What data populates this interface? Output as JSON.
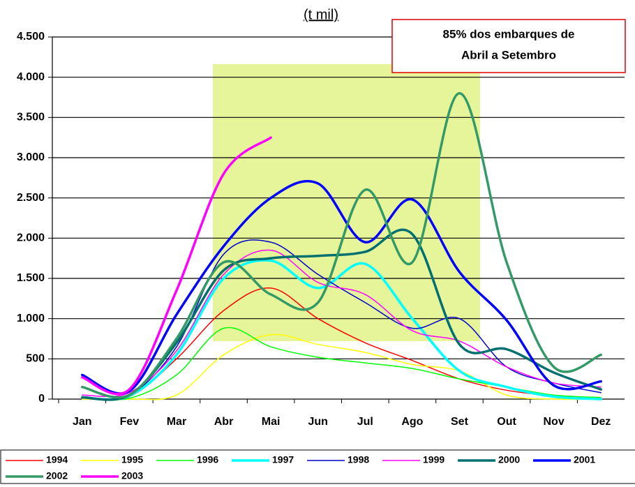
{
  "chart_data": {
    "type": "line",
    "title": "(t mil)",
    "annotation": [
      "85% dos embarques de",
      "Abril a Setembro"
    ],
    "categories": [
      "Jan",
      "Fev",
      "Mar",
      "Abr",
      "Mai",
      "Jun",
      "Jul",
      "Ago",
      "Set",
      "Out",
      "Nov",
      "Dez"
    ],
    "ylim": [
      0,
      4500
    ],
    "yticks": [
      0,
      500,
      {
        "value": 1000,
        "label": "1.000"
      },
      {
        "value": 1500,
        "label": "1.500"
      },
      {
        "value": 2000,
        "label": "2.000"
      },
      {
        "value": 2500,
        "label": "2.500"
      },
      {
        "value": 3000,
        "label": "3.000"
      },
      {
        "value": 3500,
        "label": "3.500"
      },
      {
        "value": 4000,
        "label": "4.000"
      },
      {
        "value": 4500,
        "label": "4.500"
      }
    ],
    "grid": true,
    "legend": "bottom",
    "series": [
      {
        "name": "1994",
        "color": "#ff0000",
        "line_width": 1.5,
        "values": [
          20,
          30,
          500,
          1100,
          1380,
          1000,
          700,
          480,
          250,
          110,
          40,
          10
        ]
      },
      {
        "name": "1995",
        "color": "#ffff00",
        "line_width": 1.5,
        "values": [
          0,
          0,
          50,
          550,
          800,
          680,
          580,
          430,
          350,
          50,
          0,
          0
        ]
      },
      {
        "name": "1996",
        "color": "#00ff00",
        "line_width": 1.5,
        "values": [
          20,
          10,
          300,
          880,
          650,
          520,
          450,
          380,
          250,
          150,
          50,
          20
        ]
      },
      {
        "name": "1997",
        "color": "#00ffff",
        "line_width": 3.5,
        "values": [
          20,
          40,
          550,
          1500,
          1720,
          1380,
          1680,
          1000,
          350,
          150,
          30,
          0
        ]
      },
      {
        "name": "1998",
        "color": "#0000cc",
        "line_width": 1.5,
        "values": [
          30,
          50,
          650,
          1800,
          1950,
          1550,
          1200,
          880,
          1000,
          400,
          200,
          80
        ]
      },
      {
        "name": "1999",
        "color": "#ff00ff",
        "line_width": 1.5,
        "values": [
          50,
          80,
          600,
          1550,
          1850,
          1450,
          1300,
          850,
          720,
          400,
          200,
          150
        ]
      },
      {
        "name": "2000",
        "color": "#006f6f",
        "line_width": 3.5,
        "values": [
          20,
          50,
          700,
          1600,
          1750,
          1780,
          1830,
          2050,
          680,
          620,
          330,
          120
        ]
      },
      {
        "name": "2001",
        "color": "#0000ff",
        "line_width": 3.5,
        "values": [
          300,
          100,
          1050,
          1900,
          2500,
          2680,
          1950,
          2480,
          1580,
          980,
          170,
          220
        ]
      },
      {
        "name": "2002",
        "color": "#339966",
        "line_width": 3.5,
        "values": [
          150,
          50,
          750,
          1700,
          1300,
          1200,
          2600,
          1700,
          3800,
          1700,
          400,
          550
        ]
      },
      {
        "name": "2003",
        "color": "#ff00ff",
        "line_width": 3.5,
        "values": [
          270,
          120,
          1350,
          2800,
          3250,
          null,
          null,
          null,
          null,
          null,
          null,
          null
        ]
      }
    ]
  }
}
